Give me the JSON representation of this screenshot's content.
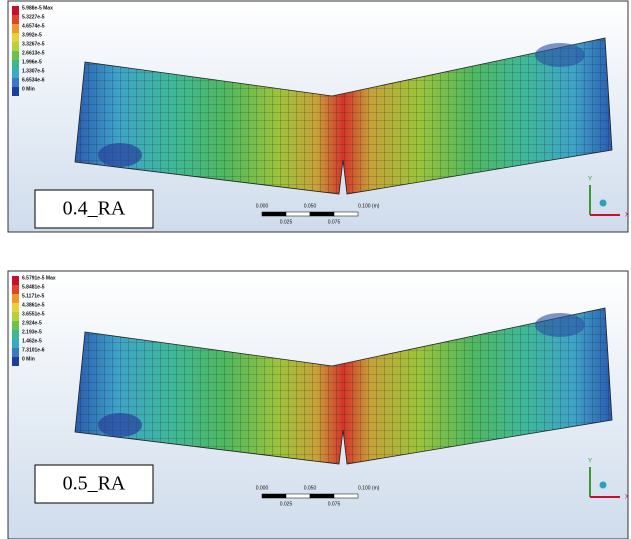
{
  "panels": [
    {
      "label": "0.4_RA",
      "legend": [
        "5.988e-5 Max",
        "5.3227e-5",
        "4.6574e-5",
        "3.992e-5",
        "3.3267e-5",
        "2.6613e-5",
        "1.996e-5",
        "1.3307e-5",
        "6.6534e-6",
        "0 Min"
      ],
      "scale_top": [
        "0.000",
        "0.050",
        "0.100 (m)"
      ],
      "scale_bottom": [
        "0.025",
        "0.075"
      ],
      "axes": [
        "Y",
        "X"
      ]
    },
    {
      "label": "0.5_RA",
      "legend": [
        "6.5791e-5 Max",
        "5.8481e-5",
        "5.1171e-5",
        "4.3861e-5",
        "3.6551e-5",
        "2.924e-5",
        "2.193e-5",
        "1.462e-5",
        "7.3101e-6",
        "0 Min"
      ],
      "scale_top": [
        "0.000",
        "0.050",
        "0.100 (m)"
      ],
      "scale_bottom": [
        "0.025",
        "0.075"
      ],
      "axes": [
        "Y",
        "X"
      ]
    }
  ]
}
